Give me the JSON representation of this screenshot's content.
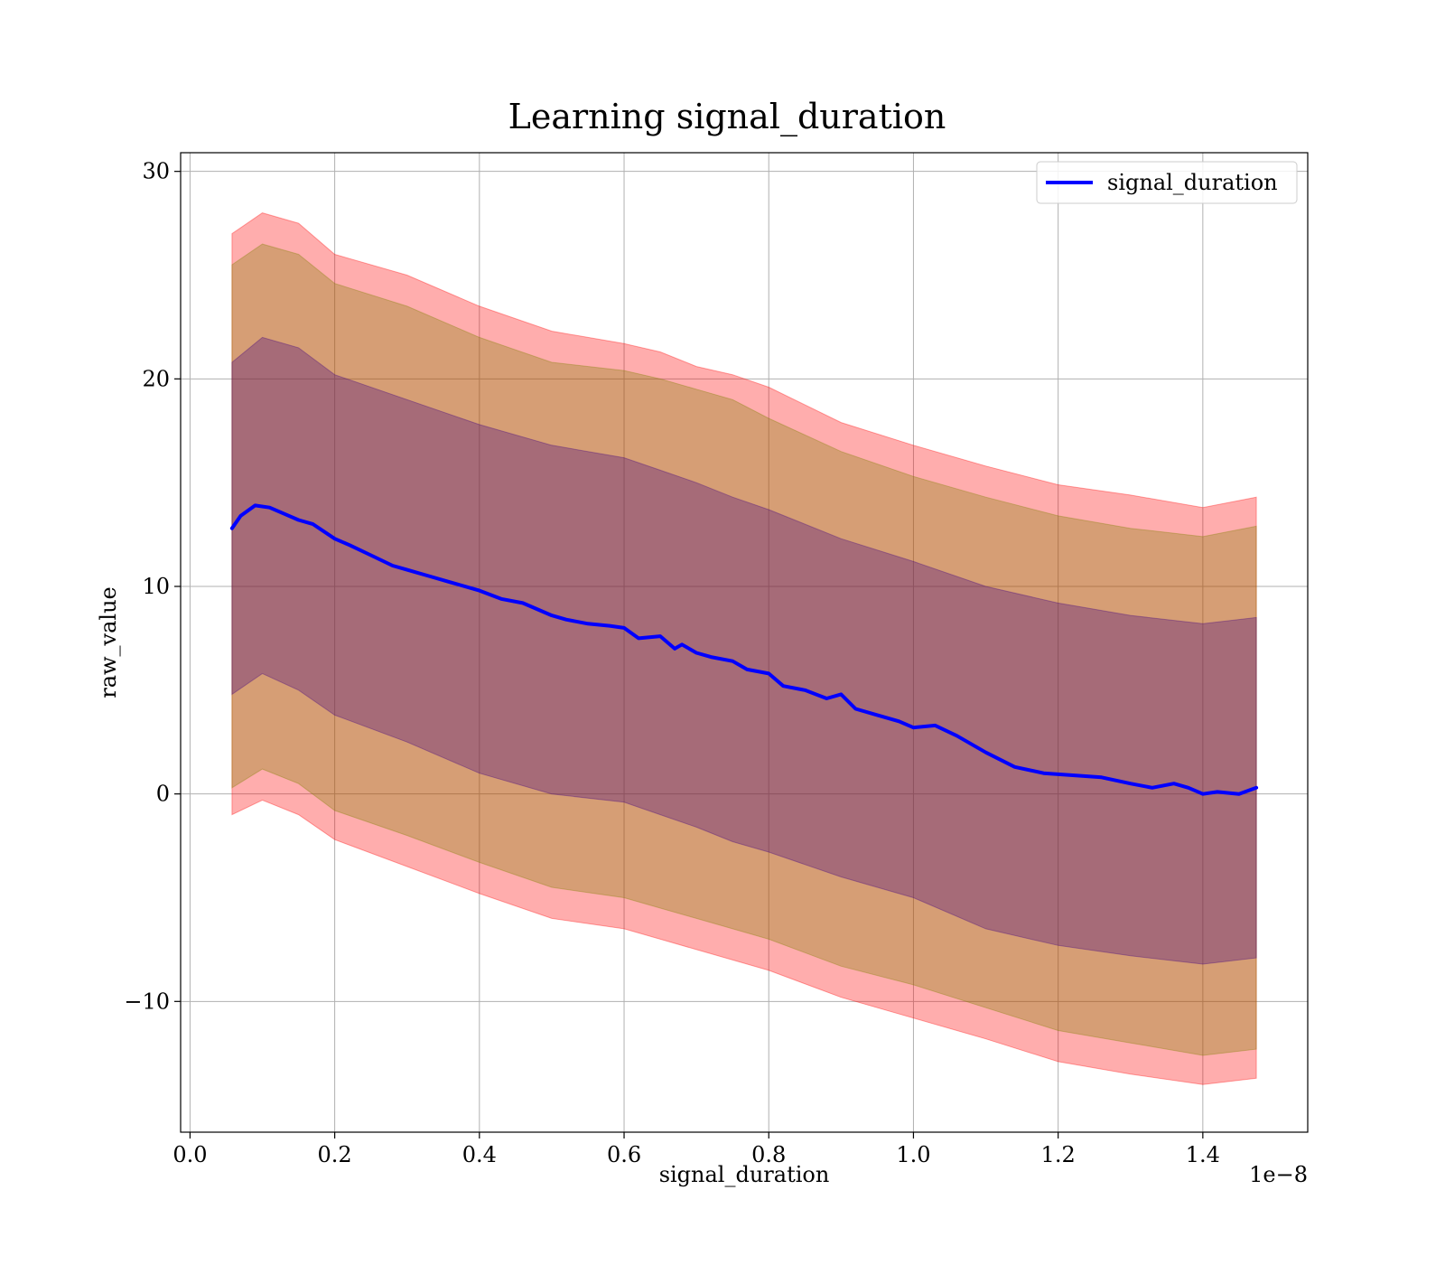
{
  "chart_data": {
    "type": "line",
    "title": "Learning signal_duration",
    "xlabel": "signal_duration",
    "ylabel": "raw_value",
    "x_offset_label": "1e−8",
    "xlim": [
      -0.013,
      1.545
    ],
    "ylim": [
      -16.3,
      30.9
    ],
    "x_ticks": [
      0.0,
      0.2,
      0.4,
      0.6,
      0.8,
      1.0,
      1.2,
      1.4
    ],
    "x_tick_labels": [
      "0.0",
      "0.2",
      "0.4",
      "0.6",
      "0.8",
      "1.0",
      "1.2",
      "1.4"
    ],
    "y_ticks": [
      -10,
      0,
      10,
      20,
      30
    ],
    "y_tick_labels": [
      "−10",
      "0",
      "10",
      "20",
      "30"
    ],
    "grid": true,
    "legend_position": "top-right",
    "series": [
      {
        "name": "signal_duration",
        "color": "#0000ff",
        "x": [
          0.058,
          0.07,
          0.09,
          0.11,
          0.13,
          0.15,
          0.17,
          0.2,
          0.22,
          0.25,
          0.28,
          0.3,
          0.33,
          0.36,
          0.4,
          0.43,
          0.46,
          0.5,
          0.52,
          0.55,
          0.58,
          0.6,
          0.62,
          0.65,
          0.67,
          0.68,
          0.7,
          0.72,
          0.75,
          0.77,
          0.8,
          0.82,
          0.85,
          0.88,
          0.9,
          0.92,
          0.95,
          0.98,
          1.0,
          1.03,
          1.06,
          1.1,
          1.14,
          1.18,
          1.22,
          1.26,
          1.3,
          1.33,
          1.36,
          1.38,
          1.4,
          1.42,
          1.45,
          1.474
        ],
        "y": [
          12.8,
          13.4,
          13.9,
          13.8,
          13.5,
          13.2,
          13.0,
          12.3,
          12.0,
          11.5,
          11.0,
          10.8,
          10.5,
          10.2,
          9.8,
          9.4,
          9.2,
          8.6,
          8.4,
          8.2,
          8.1,
          8.0,
          7.5,
          7.6,
          7.0,
          7.2,
          6.8,
          6.6,
          6.4,
          6.0,
          5.8,
          5.2,
          5.0,
          4.6,
          4.8,
          4.1,
          3.8,
          3.5,
          3.2,
          3.3,
          2.8,
          2.0,
          1.3,
          1.0,
          0.9,
          0.8,
          0.5,
          0.3,
          0.5,
          0.3,
          0.0,
          0.1,
          0.0,
          0.3
        ]
      }
    ],
    "bands": [
      {
        "color": "#ff0000",
        "opacity": 0.32,
        "x": [
          0.058,
          0.1,
          0.15,
          0.2,
          0.3,
          0.4,
          0.5,
          0.6,
          0.65,
          0.7,
          0.75,
          0.8,
          0.9,
          1.0,
          1.1,
          1.2,
          1.3,
          1.4,
          1.474
        ],
        "upper": [
          27.0,
          28.0,
          27.5,
          26.0,
          25.0,
          23.5,
          22.3,
          21.7,
          21.3,
          20.6,
          20.2,
          19.6,
          17.9,
          16.8,
          15.8,
          14.9,
          14.4,
          13.8,
          14.3
        ],
        "lower": [
          -1.0,
          -0.3,
          -1.0,
          -2.2,
          -3.5,
          -4.8,
          -6.0,
          -6.5,
          -7.0,
          -7.5,
          -8.0,
          -8.5,
          -9.8,
          -10.8,
          -11.8,
          -12.9,
          -13.5,
          -14.0,
          -13.7
        ]
      },
      {
        "color": "#808000",
        "opacity": 0.32,
        "x": [
          0.058,
          0.1,
          0.15,
          0.2,
          0.3,
          0.4,
          0.5,
          0.6,
          0.65,
          0.7,
          0.75,
          0.8,
          0.9,
          1.0,
          1.1,
          1.2,
          1.3,
          1.4,
          1.474
        ],
        "upper": [
          25.5,
          26.5,
          26.0,
          24.6,
          23.5,
          22.0,
          20.8,
          20.4,
          20.0,
          19.5,
          19.0,
          18.1,
          16.5,
          15.3,
          14.3,
          13.4,
          12.8,
          12.4,
          12.9
        ],
        "lower": [
          0.3,
          1.2,
          0.5,
          -0.8,
          -2.0,
          -3.3,
          -4.5,
          -5.0,
          -5.5,
          -6.0,
          -6.5,
          -7.0,
          -8.3,
          -9.2,
          -10.3,
          -11.4,
          -12.0,
          -12.6,
          -12.3
        ]
      },
      {
        "color": "#400080",
        "opacity": 0.32,
        "x": [
          0.058,
          0.1,
          0.15,
          0.2,
          0.3,
          0.4,
          0.5,
          0.6,
          0.65,
          0.7,
          0.75,
          0.8,
          0.9,
          1.0,
          1.1,
          1.2,
          1.3,
          1.4,
          1.474
        ],
        "upper": [
          20.8,
          22.0,
          21.5,
          20.2,
          19.0,
          17.8,
          16.8,
          16.2,
          15.6,
          15.0,
          14.3,
          13.7,
          12.3,
          11.2,
          10.0,
          9.2,
          8.6,
          8.2,
          8.5
        ],
        "lower": [
          4.8,
          5.8,
          5.0,
          3.8,
          2.5,
          1.0,
          0.0,
          -0.4,
          -1.0,
          -1.6,
          -2.3,
          -2.8,
          -4.0,
          -5.0,
          -6.5,
          -7.3,
          -7.8,
          -8.2,
          -7.9
        ]
      }
    ]
  }
}
